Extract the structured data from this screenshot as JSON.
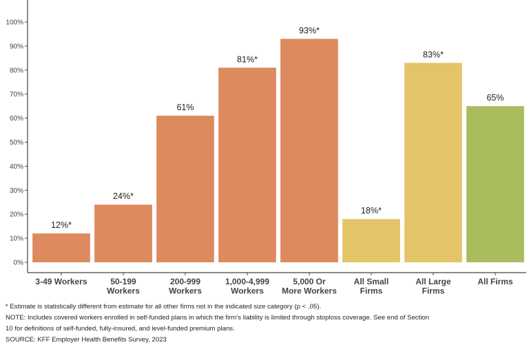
{
  "chart_data": {
    "type": "bar",
    "categories": [
      [
        "3-49 Workers"
      ],
      [
        "50-199",
        "Workers"
      ],
      [
        "200-999",
        "Workers"
      ],
      [
        "1,000-4,999",
        "Workers"
      ],
      [
        "5,000 Or",
        "More Workers"
      ],
      [
        "All Small",
        "Firms"
      ],
      [
        "All Large",
        "Firms"
      ],
      [
        "All Firms"
      ]
    ],
    "values": [
      12,
      24,
      61,
      81,
      93,
      18,
      83,
      65
    ],
    "data_labels": [
      "12%*",
      "24%*",
      "61%",
      "81%*",
      "93%*",
      "18%*",
      "83%*",
      "65%"
    ],
    "bar_colors": [
      "#dd8a5e",
      "#dd8a5e",
      "#dd8a5e",
      "#dd8a5e",
      "#dd8a5e",
      "#e3c468",
      "#e3c468",
      "#a9bd5f"
    ],
    "ylim": [
      0,
      100
    ],
    "yticks": [
      0,
      10,
      20,
      30,
      40,
      50,
      60,
      70,
      80,
      90,
      100
    ],
    "ytick_labels": [
      "0%",
      "10%",
      "20%",
      "30%",
      "40%",
      "50%",
      "60%",
      "70%",
      "80%",
      "90%",
      "100%"
    ],
    "grid": false,
    "title": "",
    "xlabel": "",
    "ylabel": ""
  },
  "notes": {
    "asterisk": "* Estimate is statistically different from estimate for all other firms not in the indicated size category (p < .05).",
    "note_line1": "NOTE: Includes covered workers enrolled in self-funded plans in which the firm's liability is limited through stoploss coverage. See end of Section",
    "note_line2": "10 for definitions of self-funded, fully-insured, and level-funded premium plans.",
    "source": "SOURCE: KFF Employer Health Benefits Survey, 2023"
  }
}
